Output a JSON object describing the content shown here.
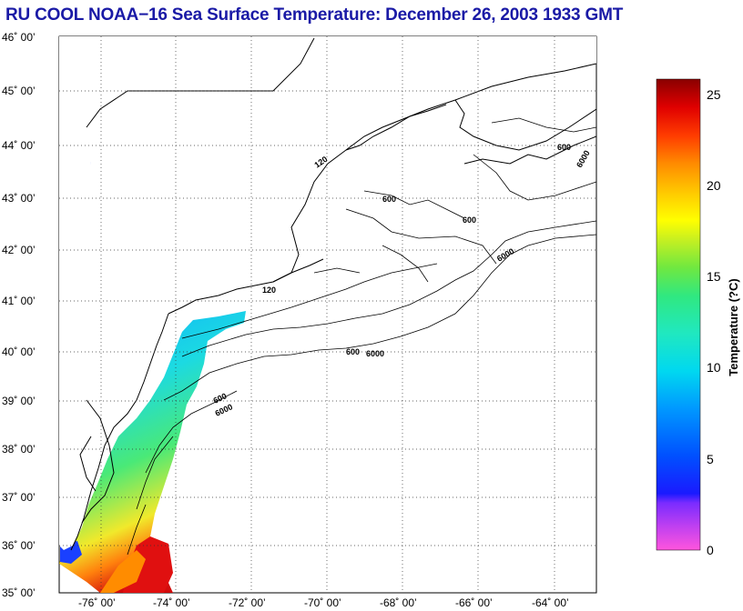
{
  "title": "RU COOL  NOAA−16  Sea Surface Temperature:  December 26, 2003 1933 GMT",
  "map": {
    "lat_labels": [
      "46˚ 00’",
      "45˚ 00’",
      "44˚ 00’",
      "43˚ 00’",
      "42˚ 00’",
      "41˚ 00’",
      "40˚ 00’",
      "39˚ 00’",
      "38˚ 00’",
      "37˚ 00’",
      "36˚ 00’",
      "35˚ 00’"
    ],
    "lon_labels": [
      "-76˚ 00’",
      "-74˚ 00’",
      "-72˚ 00’",
      "-70˚ 00’",
      "-68˚ 00’",
      "-66˚ 00’",
      "-64˚ 00’"
    ],
    "contour_labels": [
      "120",
      "600",
      "6000"
    ],
    "land_color": "#ffffff",
    "coast_color": "#000000"
  },
  "colorbar": {
    "title": "Temperature (?C)",
    "ticks": [
      "25",
      "20",
      "15",
      "10",
      "5",
      "0"
    ],
    "min": 0,
    "max": 26
  }
}
